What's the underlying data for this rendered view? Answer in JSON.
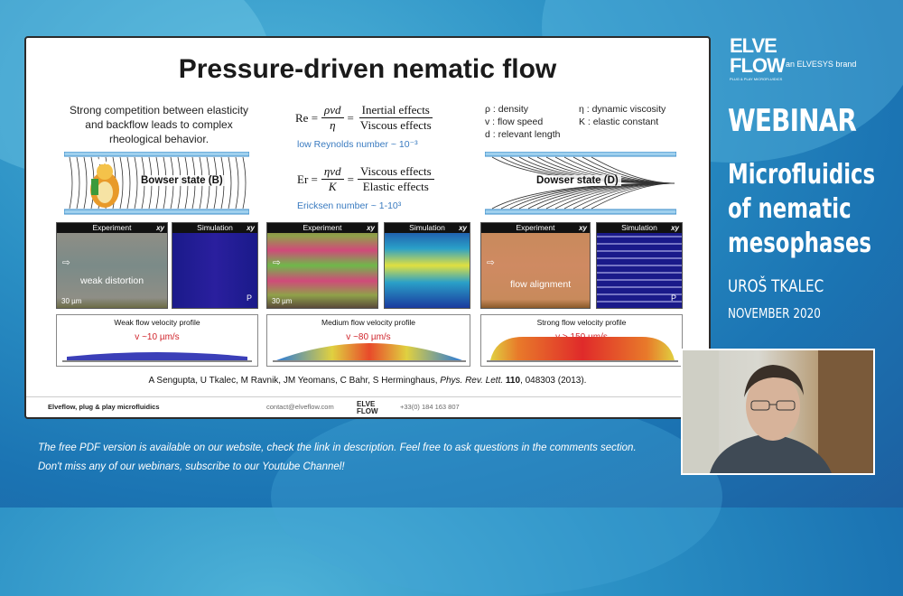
{
  "slide": {
    "title": "Pressure-driven nematic flow",
    "intro": "Strong competition between elasticity and backflow leads to complex rheological behavior.",
    "equations": {
      "re_lhs": "Re =",
      "re_num": "ρvd",
      "re_den": "η",
      "re_rhs_num": "Inertial effects",
      "re_rhs_den": "Viscous effects",
      "re_note": "low Reynolds number ~ 10⁻³",
      "er_lhs": "Er =",
      "er_num": "ηvd",
      "er_den": "K",
      "er_rhs_num": "Viscous effects",
      "er_rhs_den": "Elastic effects",
      "er_note": "Ericksen number ~ 1-10³"
    },
    "definitions": {
      "rho": "ρ : density",
      "v": "v : flow speed",
      "d": "d : relevant length",
      "eta": "η : dynamic viscosity",
      "K": "K : elastic constant"
    },
    "states": {
      "bowser": "Bowser state (B)",
      "dowser": "Dowser state (D)"
    },
    "tiles": {
      "experiment": "Experiment",
      "simulation": "Simulation",
      "xy": "xy",
      "scale": "30 µm",
      "weak_label": "weak distortion",
      "strong_label": "flow alignment",
      "p": "P"
    },
    "profiles": [
      {
        "title": "Weak flow velocity profile",
        "velocity": "v ~10 µm/s"
      },
      {
        "title": "Medium flow velocity profile",
        "velocity": "v ~80 µm/s"
      },
      {
        "title": "Strong flow velocity profile",
        "velocity": "v > 150 µm/s"
      }
    ],
    "reference_authors": "A Sengupta, U Tkalec, M Ravnik, JM Yeomans, C Bahr, S Herminghaus,",
    "reference_journal": "Phys. Rev. Lett.",
    "reference_volume": "110",
    "reference_pages": ", 048303 (2013).",
    "footer": {
      "left": "Elveflow, plug & play microfluidics",
      "email": "contact@elveflow.com",
      "logo": "ELVE FLOW",
      "phone": "+33(0) 184 163 807"
    }
  },
  "brand": {
    "logo_top": "ELVE",
    "logo_bottom": "FLOW",
    "tagline": "an ELVESYS brand",
    "sub": "PLUG & PLAY MICROFLUIDICS"
  },
  "sidebar": {
    "webinar": "WEBINAR",
    "line1": "Microfluidics",
    "line2": "of nematic",
    "line3": "mesophases",
    "speaker": "UROŠ TKALEC",
    "date": "NOVEMBER 2020"
  },
  "bottom": {
    "line1": "The free PDF version is available on our website, check the link in description. Feel free to ask questions in the comments section.",
    "line2": "Don't miss any of our webinars, subscribe to our Youtube Channel!"
  }
}
